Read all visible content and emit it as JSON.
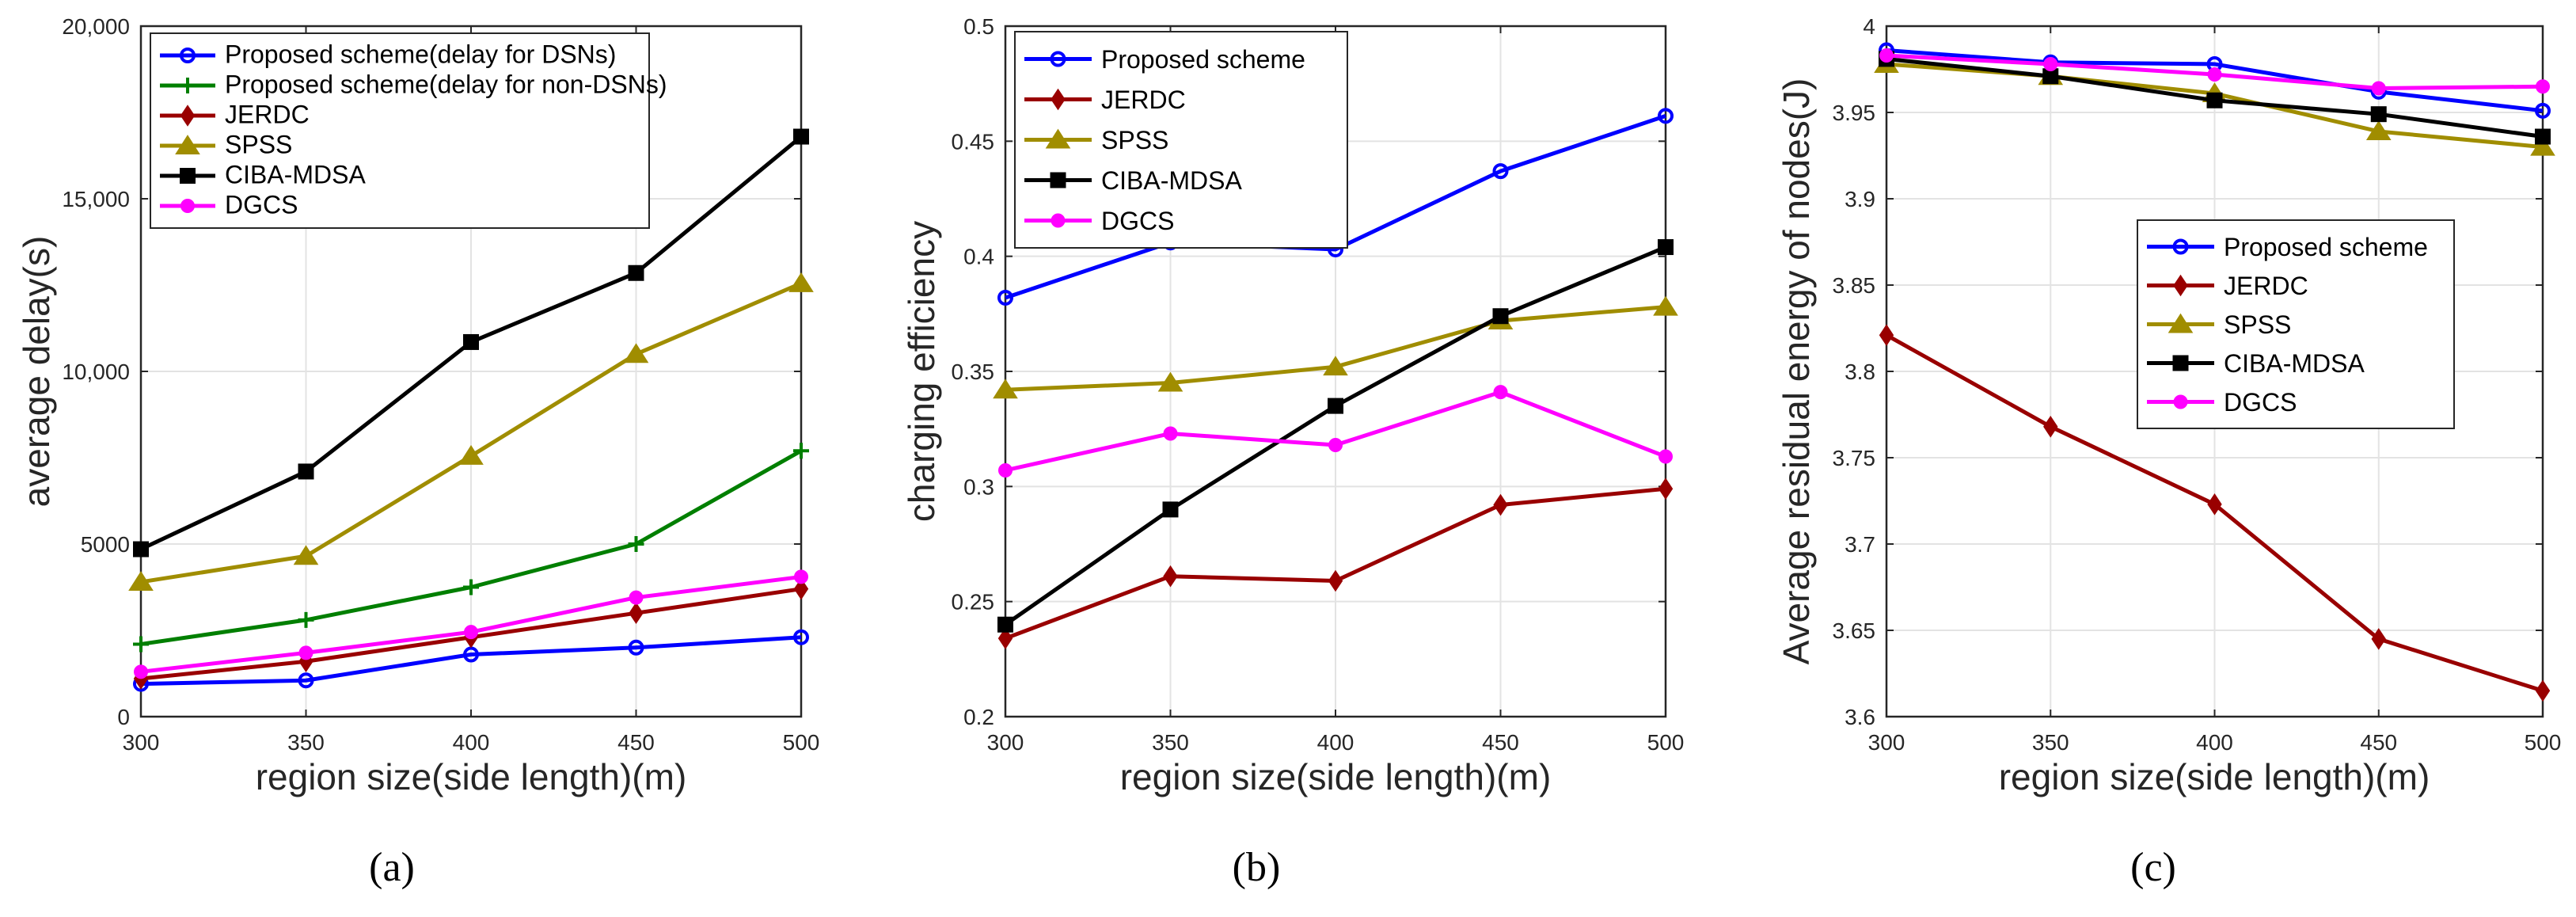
{
  "chart_data": [
    {
      "type": "line",
      "panel_label": "(a)",
      "xlabel": "region size(side length)(m)",
      "ylabel": "average delay(s)",
      "xlim": [
        300,
        500
      ],
      "ylim": [
        0,
        20000
      ],
      "x": [
        300,
        350,
        400,
        450,
        500
      ],
      "x_tick_labels": [
        "300",
        "350",
        "400",
        "450",
        "500"
      ],
      "y_ticks": [
        0,
        5000,
        10000,
        15000,
        20000
      ],
      "y_tick_labels": [
        "0",
        "5000",
        "10,000",
        "15,000",
        "20,000"
      ],
      "grid": true,
      "legend_position": "top-left",
      "series": [
        {
          "name": "Proposed scheme(delay for DSNs)",
          "values": [
            950,
            1050,
            1800,
            2000,
            2300
          ],
          "color": "#0000ff",
          "marker": "circle"
        },
        {
          "name": "Proposed scheme(delay for non-DSNs)",
          "values": [
            2100,
            2800,
            3750,
            5000,
            7700
          ],
          "color": "#007f00",
          "marker": "plus"
        },
        {
          "name": "JERDC",
          "values": [
            1100,
            1600,
            2300,
            3000,
            3700
          ],
          "color": "#990000",
          "marker": "diamond"
        },
        {
          "name": "SPSS",
          "values": [
            3900,
            4650,
            7550,
            10500,
            12550
          ],
          "color": "#a08d00",
          "marker": "triangle"
        },
        {
          "name": "CIBA-MDSA",
          "values": [
            4850,
            7100,
            10850,
            12850,
            16800
          ],
          "color": "#000000",
          "marker": "square"
        },
        {
          "name": "DGCS",
          "values": [
            1300,
            1850,
            2450,
            3450,
            4050
          ],
          "color": "#ff00ff",
          "marker": "dot"
        }
      ]
    },
    {
      "type": "line",
      "panel_label": "(b)",
      "xlabel": "region size(side length)(m)",
      "ylabel": "charging efficiency",
      "xlim": [
        300,
        500
      ],
      "ylim": [
        0.2,
        0.5
      ],
      "x": [
        300,
        350,
        400,
        450,
        500
      ],
      "x_tick_labels": [
        "300",
        "350",
        "400",
        "450",
        "500"
      ],
      "y_ticks": [
        0.2,
        0.25,
        0.3,
        0.35,
        0.4,
        0.45,
        0.5
      ],
      "y_tick_labels": [
        "0.2",
        "0.25",
        "0.3",
        "0.35",
        "0.4",
        "0.45",
        "0.5"
      ],
      "grid": true,
      "legend_position": "top-left",
      "series": [
        {
          "name": "Proposed scheme",
          "values": [
            0.382,
            0.406,
            0.403,
            0.437,
            0.461
          ],
          "color": "#0000ff",
          "marker": "circle"
        },
        {
          "name": "JERDC",
          "values": [
            0.234,
            0.261,
            0.259,
            0.292,
            0.299
          ],
          "color": "#990000",
          "marker": "diamond"
        },
        {
          "name": "SPSS",
          "values": [
            0.342,
            0.345,
            0.352,
            0.372,
            0.378
          ],
          "color": "#a08d00",
          "marker": "triangle"
        },
        {
          "name": "CIBA-MDSA",
          "values": [
            0.24,
            0.29,
            0.335,
            0.374,
            0.404
          ],
          "color": "#000000",
          "marker": "square"
        },
        {
          "name": "DGCS",
          "values": [
            0.307,
            0.323,
            0.318,
            0.341,
            0.313
          ],
          "color": "#ff00ff",
          "marker": "dot"
        }
      ]
    },
    {
      "type": "line",
      "panel_label": "(c)",
      "xlabel": "region size(side length)(m)",
      "ylabel": "Average residual energy of nodes(J)",
      "xlim": [
        300,
        500
      ],
      "ylim": [
        3.6,
        4.0
      ],
      "x": [
        300,
        350,
        400,
        450,
        500
      ],
      "x_tick_labels": [
        "300",
        "350",
        "400",
        "450",
        "500"
      ],
      "y_ticks": [
        3.6,
        3.65,
        3.7,
        3.75,
        3.8,
        3.85,
        3.9,
        3.95,
        4.0
      ],
      "y_tick_labels": [
        "3.6",
        "3.65",
        "3.7",
        "3.75",
        "3.8",
        "3.85",
        "3.9",
        "3.95",
        "4"
      ],
      "grid": true,
      "legend_position": "center-right",
      "series": [
        {
          "name": "Proposed scheme",
          "values": [
            3.986,
            3.979,
            3.978,
            3.962,
            3.951
          ],
          "color": "#0000ff",
          "marker": "circle"
        },
        {
          "name": "JERDC",
          "values": [
            3.821,
            3.768,
            3.723,
            3.645,
            3.615
          ],
          "color": "#990000",
          "marker": "diamond"
        },
        {
          "name": "SPSS",
          "values": [
            3.978,
            3.971,
            3.961,
            3.939,
            3.93
          ],
          "color": "#a08d00",
          "marker": "triangle"
        },
        {
          "name": "CIBA-MDSA",
          "values": [
            3.981,
            3.971,
            3.957,
            3.949,
            3.936
          ],
          "color": "#000000",
          "marker": "square"
        },
        {
          "name": "DGCS",
          "values": [
            3.983,
            3.978,
            3.972,
            3.964,
            3.965
          ],
          "color": "#ff00ff",
          "marker": "dot"
        }
      ]
    }
  ]
}
